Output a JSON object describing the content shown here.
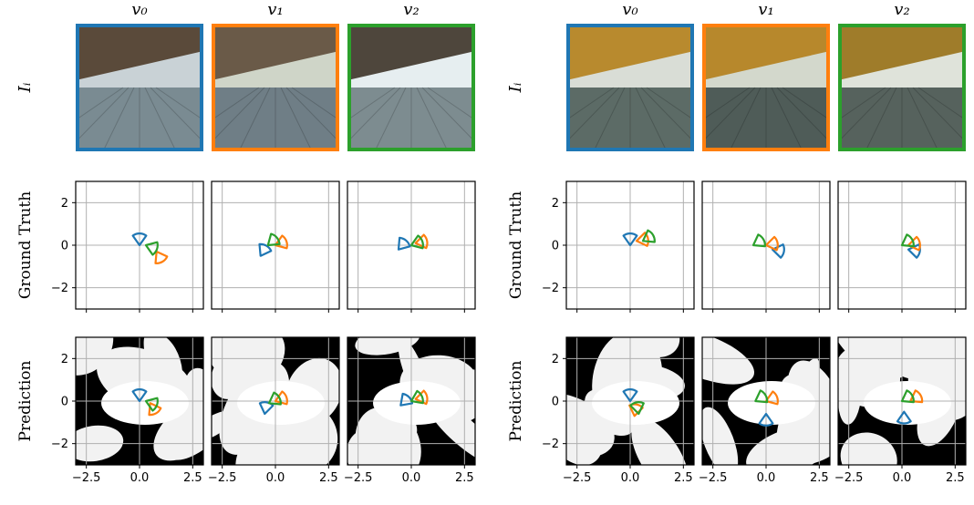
{
  "column_labels": [
    "v₀",
    "v₁",
    "v₂"
  ],
  "row_labels": {
    "images": "Iᵢ",
    "ground_truth": "Ground Truth",
    "prediction": "Prediction"
  },
  "colors": {
    "v0": "#1f77b4",
    "v1": "#ff7f0e",
    "v2": "#2ca02c",
    "grid": "#b0b0b0"
  },
  "chart_data": {
    "type": "scatter",
    "x_ticks": [
      "−2.5",
      "0.0",
      "2.5"
    ],
    "y_ticks": [
      "2",
      "0",
      "−2"
    ],
    "xlim": [
      -3,
      3
    ],
    "ylim": [
      -3,
      3
    ],
    "grid": true,
    "scenes": [
      {
        "image_tints": [
          {
            "sky": "#c9d2d6",
            "ground": "#7a8b92",
            "roof": "#5a4a3a"
          },
          {
            "sky": "#cfd5c8",
            "ground": "#6f7e86",
            "roof": "#6a5a48"
          },
          {
            "sky": "#e6eef0",
            "ground": "#7d8c90",
            "roof": "#4e463c"
          }
        ],
        "ground_truth": [
          [
            {
              "x": 0,
              "y": 0,
              "angle": 90
            },
            {
              "x": 0.8,
              "y": -0.3,
              "angle": -60
            },
            {
              "x": 0.3,
              "y": 0,
              "angle": -20
            }
          ],
          [
            {
              "x": -0.7,
              "y": -0.5,
              "angle": 60
            },
            {
              "x": 0,
              "y": 0,
              "angle": 20
            },
            {
              "x": -0.35,
              "y": 0,
              "angle": 40
            }
          ],
          [
            {
              "x": -0.6,
              "y": -0.2,
              "angle": 50
            },
            {
              "x": 0.2,
              "y": 0.1,
              "angle": 10
            },
            {
              "x": 0,
              "y": 0,
              "angle": 20
            }
          ]
        ],
        "prediction": [
          [
            {
              "x": 0,
              "y": 0,
              "angle": 90
            },
            {
              "x": 0.5,
              "y": -0.1,
              "angle": -60
            },
            {
              "x": 0.3,
              "y": 0,
              "angle": -20
            }
          ],
          [
            {
              "x": -0.5,
              "y": -0.6,
              "angle": 80
            },
            {
              "x": 0,
              "y": 0,
              "angle": 20
            },
            {
              "x": -0.3,
              "y": -0.1,
              "angle": 30
            }
          ],
          [
            {
              "x": -0.5,
              "y": -0.2,
              "angle": 45
            },
            {
              "x": 0.2,
              "y": 0.1,
              "angle": 10
            },
            {
              "x": 0,
              "y": 0,
              "angle": 25
            }
          ]
        ]
      },
      {
        "image_tints": [
          {
            "sky": "#d9ddd6",
            "ground": "#5c6b66",
            "roof": "#b88a2e"
          },
          {
            "sky": "#d3d8cc",
            "ground": "#4f5c58",
            "roof": "#b7882c"
          },
          {
            "sky": "#dfe3da",
            "ground": "#56625d",
            "roof": "#9f7c2a"
          }
        ],
        "ground_truth": [
          [
            {
              "x": 0,
              "y": 0,
              "angle": 90
            },
            {
              "x": 0.3,
              "y": 0.2,
              "angle": 10
            },
            {
              "x": 0.6,
              "y": 0.2,
              "angle": 30
            }
          ],
          [
            {
              "x": 0.3,
              "y": -0.2,
              "angle": -10
            },
            {
              "x": 0,
              "y": 0,
              "angle": 10
            },
            {
              "x": -0.6,
              "y": 0,
              "angle": 30
            }
          ],
          [
            {
              "x": 0.3,
              "y": -0.2,
              "angle": -10
            },
            {
              "x": 0.3,
              "y": 0,
              "angle": 10
            },
            {
              "x": 0,
              "y": 0,
              "angle": 30
            }
          ]
        ],
        "prediction": [
          [
            {
              "x": 0,
              "y": 0,
              "angle": 90
            },
            {
              "x": 0.2,
              "y": -0.7,
              "angle": 80
            },
            {
              "x": 0.4,
              "y": -0.6,
              "angle": 100
            }
          ],
          [
            {
              "x": 0,
              "y": -0.6,
              "angle": -90
            },
            {
              "x": 0,
              "y": 0,
              "angle": 20
            },
            {
              "x": -0.5,
              "y": 0,
              "angle": 30
            }
          ],
          [
            {
              "x": 0.1,
              "y": -0.5,
              "angle": -90
            },
            {
              "x": 0.4,
              "y": 0,
              "angle": 30
            },
            {
              "x": 0,
              "y": 0,
              "angle": 30
            }
          ]
        ]
      }
    ]
  }
}
